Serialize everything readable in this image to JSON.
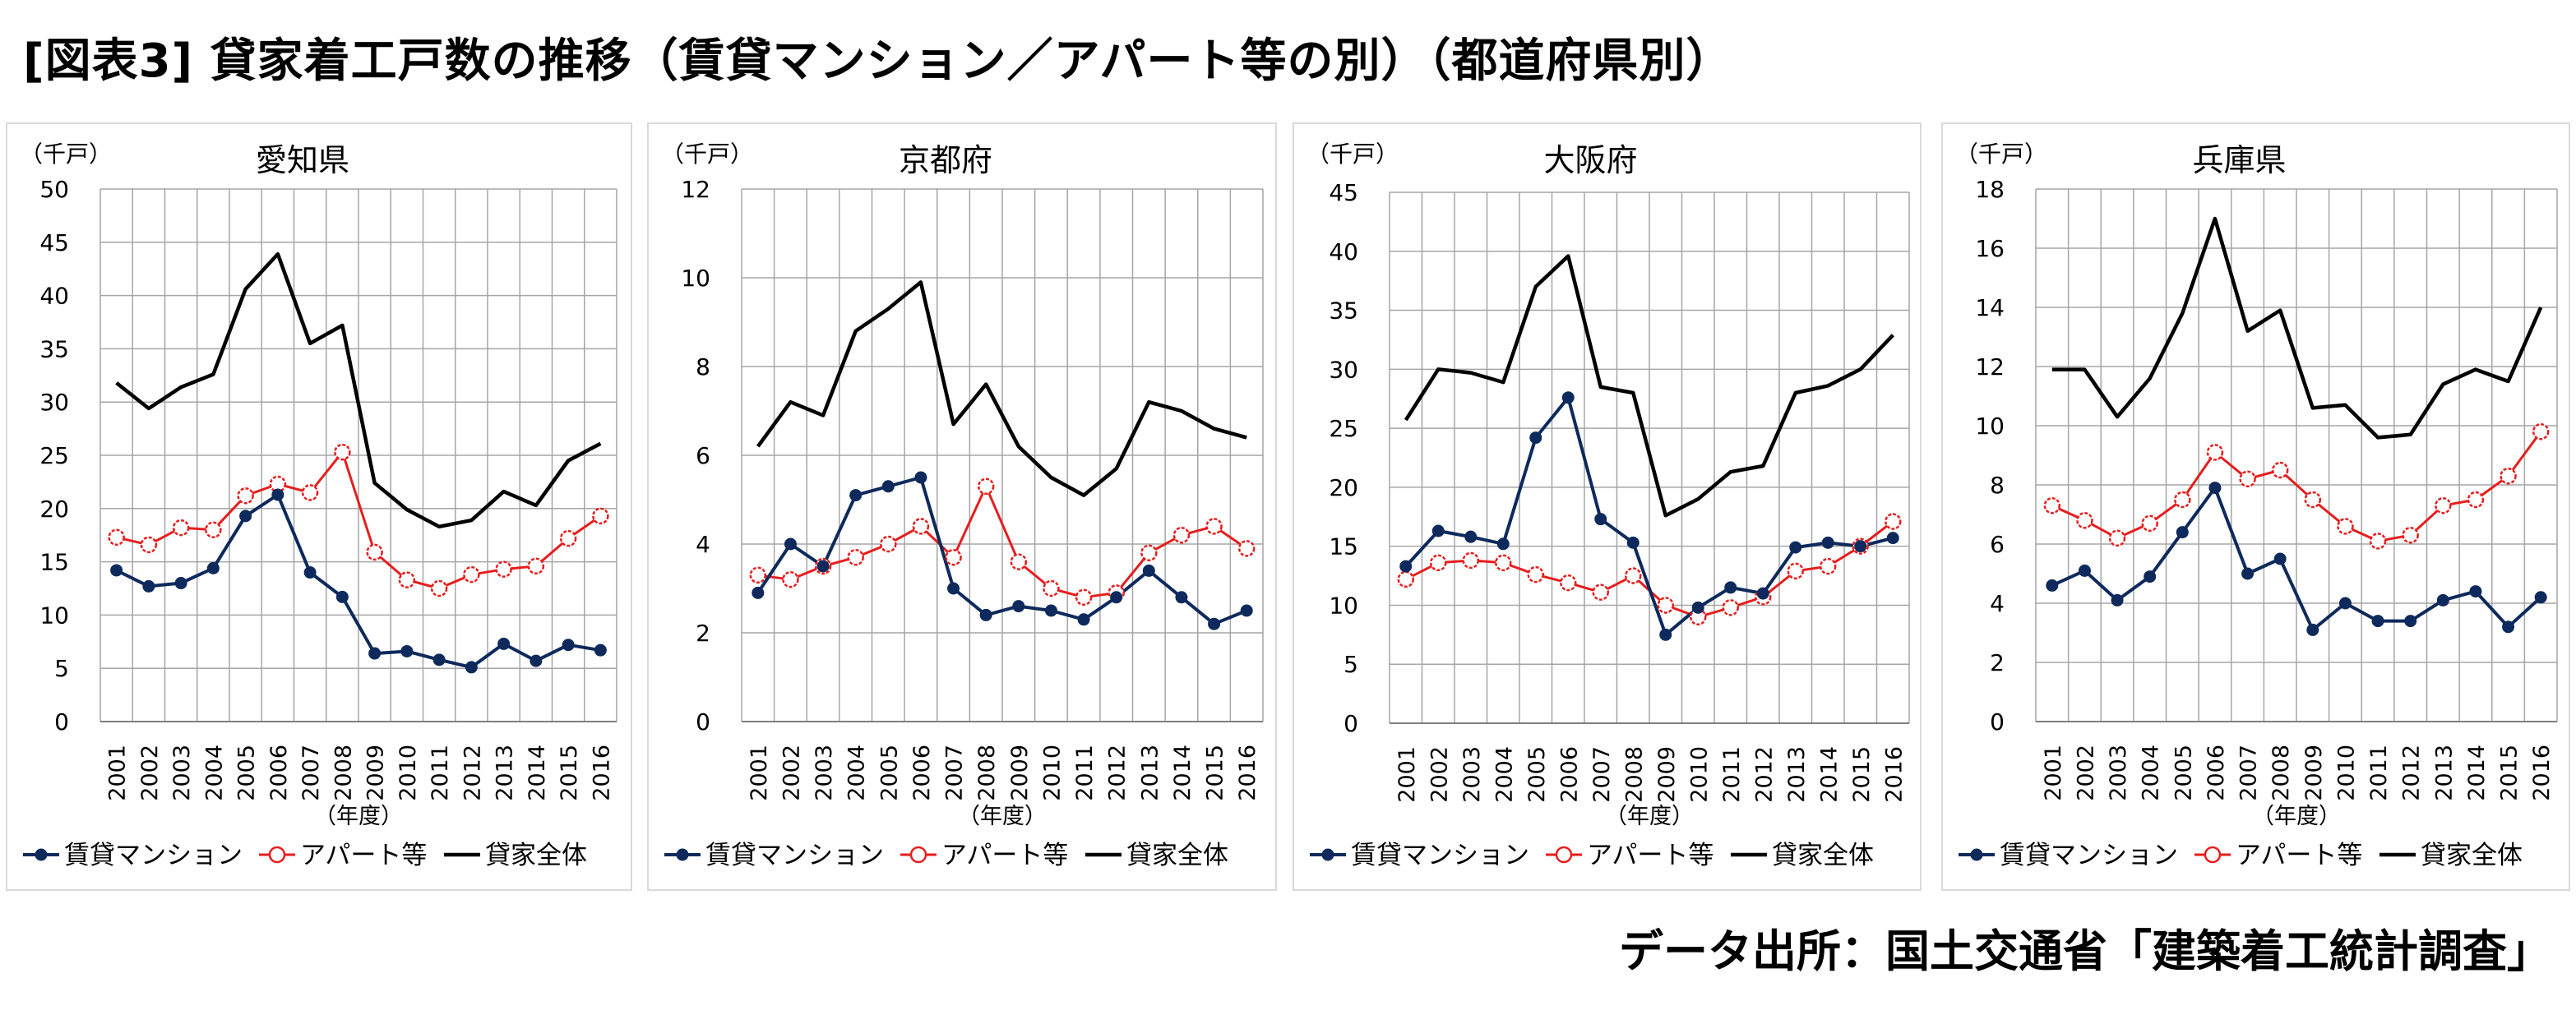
{
  "page": {
    "title": "[図表3] 貸家着工戸数の推移（賃貸マンション／アパート等の別）（都道府県別）",
    "source": "データ出所：国土交通省「建築着工統計調査」"
  },
  "colors": {
    "mansion": "#0e2a5c",
    "apartment": "#e61e1e",
    "total": "#000000",
    "grid": "#a6a6a6",
    "panel_border": "#d9d9d9"
  },
  "chart_data": [
    {
      "type": "line",
      "title": "愛知県",
      "ylabel": "（千戸）",
      "xlabel": "（年度）",
      "ylim": [
        0,
        50
      ],
      "yticks": [
        0,
        5,
        10,
        15,
        20,
        25,
        30,
        35,
        40,
        45,
        50
      ],
      "grid": true,
      "legend": "bottom",
      "x": [
        "2001",
        "2002",
        "2003",
        "2004",
        "2005",
        "2006",
        "2007",
        "2008",
        "2009",
        "2010",
        "2011",
        "2012",
        "2013",
        "2014",
        "2015",
        "2016"
      ],
      "series": [
        {
          "name": "賃貸マンション",
          "values": [
            14.2,
            12.7,
            13.0,
            14.4,
            19.3,
            21.3,
            14.0,
            11.7,
            6.4,
            6.6,
            5.8,
            5.1,
            7.3,
            5.7,
            7.2,
            6.7
          ]
        },
        {
          "name": "アパート等",
          "values": [
            17.3,
            16.6,
            18.2,
            18.0,
            21.2,
            22.3,
            21.5,
            25.3,
            15.9,
            13.3,
            12.5,
            13.8,
            14.3,
            14.6,
            17.2,
            19.3
          ]
        },
        {
          "name": "貸家全体",
          "values": [
            31.8,
            29.4,
            31.4,
            32.6,
            40.6,
            43.9,
            35.5,
            37.2,
            22.4,
            19.9,
            18.3,
            18.9,
            21.6,
            20.3,
            24.5,
            26.1
          ]
        }
      ]
    },
    {
      "type": "line",
      "title": "京都府",
      "ylabel": "（千戸）",
      "xlabel": "（年度）",
      "ylim": [
        0,
        12
      ],
      "yticks": [
        0,
        2,
        4,
        6,
        8,
        10,
        12
      ],
      "grid": true,
      "legend": "bottom",
      "x": [
        "2001",
        "2002",
        "2003",
        "2004",
        "2005",
        "2006",
        "2007",
        "2008",
        "2009",
        "2010",
        "2011",
        "2012",
        "2013",
        "2014",
        "2015",
        "2016"
      ],
      "series": [
        {
          "name": "賃貸マンション",
          "values": [
            2.9,
            4.0,
            3.5,
            5.1,
            5.3,
            5.5,
            3.0,
            2.4,
            2.6,
            2.5,
            2.3,
            2.8,
            3.4,
            2.8,
            2.2,
            2.5
          ]
        },
        {
          "name": "アパート等",
          "values": [
            3.3,
            3.2,
            3.5,
            3.7,
            4.0,
            4.4,
            3.7,
            5.3,
            3.6,
            3.0,
            2.8,
            2.9,
            3.8,
            4.2,
            4.4,
            3.9
          ]
        },
        {
          "name": "貸家全体",
          "values": [
            6.2,
            7.2,
            6.9,
            8.8,
            9.3,
            9.9,
            6.7,
            7.6,
            6.2,
            5.5,
            5.1,
            5.7,
            7.2,
            7.0,
            6.6,
            6.4
          ]
        }
      ]
    },
    {
      "type": "line",
      "title": "大阪府",
      "ylabel": "（千戸）",
      "xlabel": "（年度）",
      "ylim": [
        0,
        45
      ],
      "yticks": [
        0,
        5,
        10,
        15,
        20,
        25,
        30,
        35,
        40,
        45
      ],
      "grid": true,
      "legend": "bottom",
      "x": [
        "2001",
        "2002",
        "2003",
        "2004",
        "2005",
        "2006",
        "2007",
        "2008",
        "2009",
        "2010",
        "2011",
        "2012",
        "2013",
        "2014",
        "2015",
        "2016"
      ],
      "series": [
        {
          "name": "賃貸マンション",
          "values": [
            13.3,
            16.3,
            15.8,
            15.2,
            24.2,
            27.6,
            17.3,
            15.3,
            7.5,
            9.8,
            11.5,
            11.0,
            14.9,
            15.3,
            15.0,
            15.7
          ]
        },
        {
          "name": "アパート等",
          "values": [
            12.2,
            13.6,
            13.8,
            13.6,
            12.6,
            11.9,
            11.1,
            12.5,
            10.0,
            9.0,
            9.8,
            10.7,
            12.9,
            13.3,
            15.0,
            17.1
          ]
        },
        {
          "name": "貸家全体",
          "values": [
            25.7,
            30.0,
            29.7,
            28.9,
            37.0,
            39.6,
            28.5,
            28.0,
            17.6,
            19.0,
            21.3,
            21.8,
            28.0,
            28.6,
            30.0,
            32.9
          ]
        }
      ]
    },
    {
      "type": "line",
      "title": "兵庫県",
      "ylabel": "（千戸）",
      "xlabel": "（年度）",
      "ylim": [
        0,
        18
      ],
      "yticks": [
        0,
        2,
        4,
        6,
        8,
        10,
        12,
        14,
        16,
        18
      ],
      "grid": true,
      "legend": "bottom",
      "x": [
        "2001",
        "2002",
        "2003",
        "2004",
        "2005",
        "2006",
        "2007",
        "2008",
        "2009",
        "2010",
        "2011",
        "2012",
        "2013",
        "2014",
        "2015",
        "2016"
      ],
      "series": [
        {
          "name": "賃貸マンション",
          "values": [
            4.6,
            5.1,
            4.1,
            4.9,
            6.4,
            7.9,
            5.0,
            5.5,
            3.1,
            4.0,
            3.4,
            3.4,
            4.1,
            4.4,
            3.2,
            4.2
          ]
        },
        {
          "name": "アパート等",
          "values": [
            7.3,
            6.8,
            6.2,
            6.7,
            7.5,
            9.1,
            8.2,
            8.5,
            7.5,
            6.6,
            6.1,
            6.3,
            7.3,
            7.5,
            8.3,
            9.8
          ]
        },
        {
          "name": "貸家全体",
          "values": [
            11.9,
            11.9,
            10.3,
            11.6,
            13.8,
            17.0,
            13.2,
            13.9,
            10.6,
            10.7,
            9.6,
            9.7,
            11.4,
            11.9,
            11.5,
            14.0
          ]
        }
      ]
    }
  ]
}
